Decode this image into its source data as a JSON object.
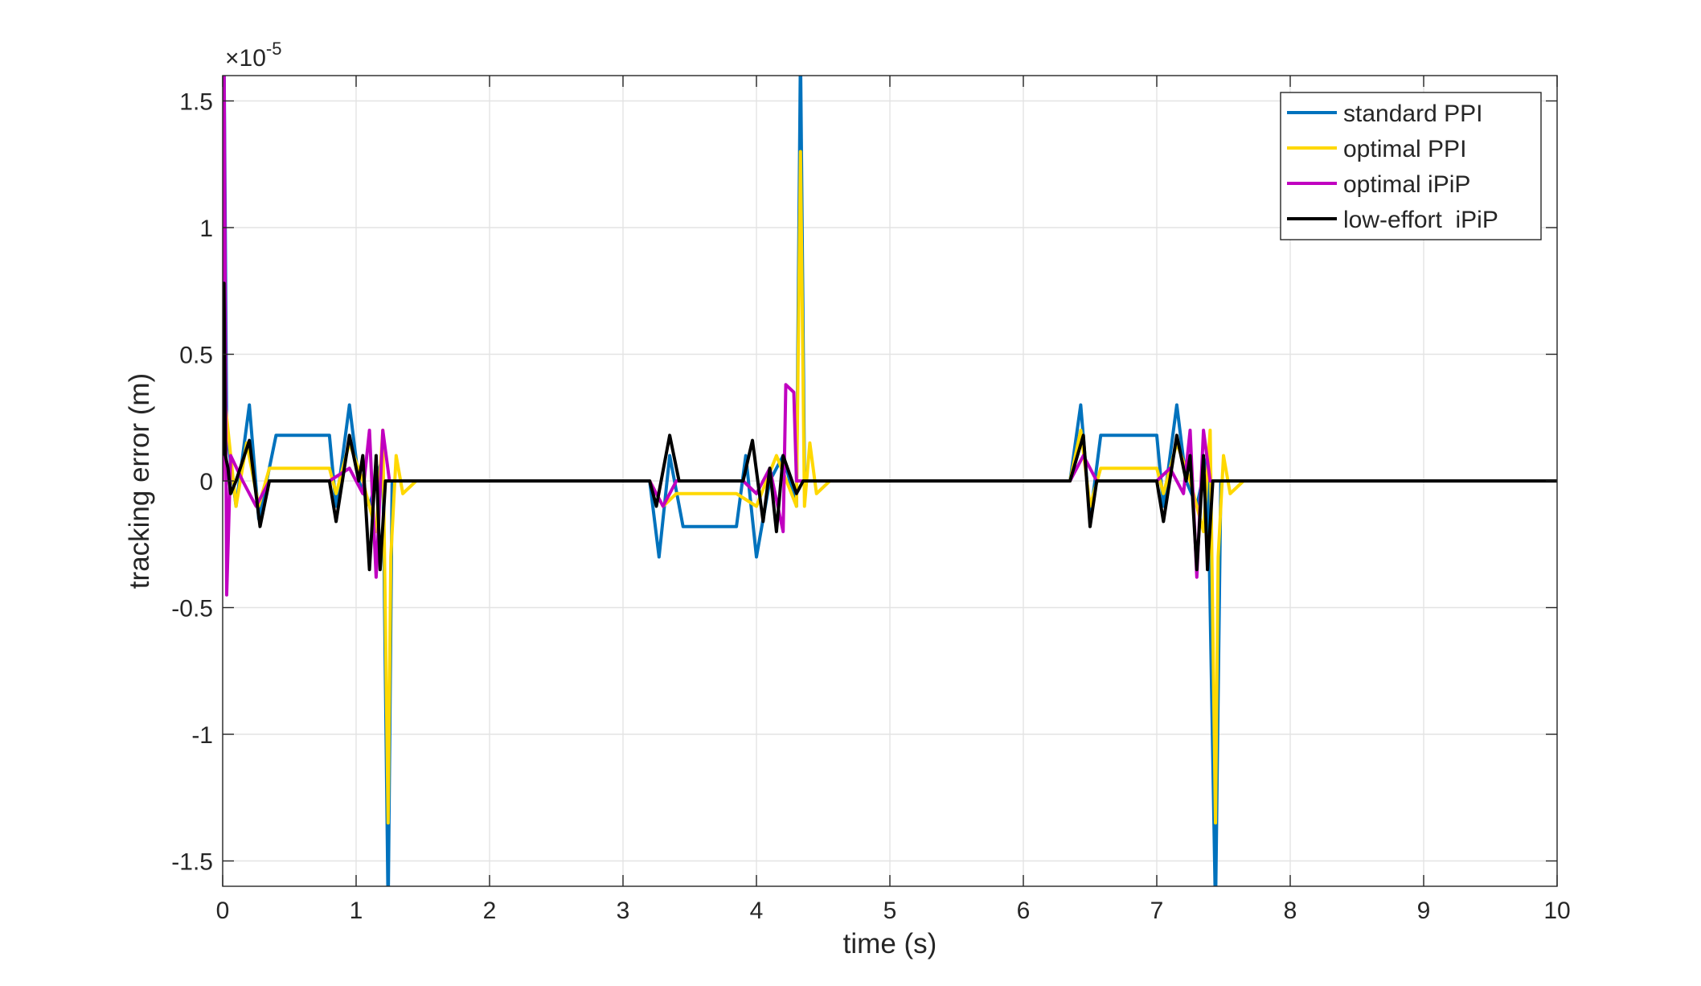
{
  "chart_data": {
    "type": "line",
    "xlabel": "time (s)",
    "ylabel": "tracking error (m)",
    "y_multiplier": "×10",
    "y_multiplier_exponent": "-5",
    "xlim": [
      0,
      10
    ],
    "xticks": [
      0,
      1,
      2,
      3,
      4,
      5,
      6,
      7,
      8,
      9,
      10
    ],
    "ylim": [
      -1.6,
      1.6
    ],
    "yticks": [
      -1.5,
      -1,
      -0.5,
      0,
      0.5,
      1,
      1.5
    ],
    "grid": true,
    "legend_location": "northeast",
    "series": [
      {
        "name": "standard PPI",
        "color": "#0072bd",
        "x": [
          0,
          0.01,
          0.03,
          0.1,
          0.2,
          0.27,
          0.33,
          0.4,
          0.8,
          0.85,
          0.95,
          1.02,
          1.1,
          1.2,
          1.24,
          1.27,
          1.4,
          3.2,
          3.27,
          3.35,
          3.45,
          3.85,
          3.92,
          4.0,
          4.1,
          4.2,
          4.3,
          4.33,
          4.36,
          4.5,
          6.35,
          6.43,
          6.5,
          6.58,
          7.0,
          7.05,
          7.15,
          7.22,
          7.3,
          7.38,
          7.44,
          7.48,
          7.6,
          10
        ],
        "values": [
          0,
          1.7,
          0.2,
          -0.1,
          0.3,
          -0.15,
          0,
          0.18,
          0.18,
          -0.1,
          0.3,
          0,
          -0.1,
          0.1,
          -1.7,
          0,
          0,
          0,
          -0.3,
          0.1,
          -0.18,
          -0.18,
          0.1,
          -0.3,
          0,
          0.1,
          -0.1,
          1.7,
          0,
          0,
          0,
          0.3,
          -0.15,
          0.18,
          0.18,
          -0.1,
          0.3,
          0,
          -0.1,
          0.1,
          -1.7,
          0,
          0,
          0
        ]
      },
      {
        "name": "optimal PPI",
        "color": "#ffd800",
        "x": [
          0,
          0.02,
          0.1,
          0.18,
          0.27,
          0.35,
          0.8,
          0.85,
          0.95,
          1.05,
          1.15,
          1.2,
          1.24,
          1.26,
          1.3,
          1.35,
          1.45,
          3.2,
          3.3,
          3.4,
          3.85,
          4.0,
          4.15,
          4.3,
          4.33,
          4.36,
          4.4,
          4.45,
          4.55,
          6.35,
          6.43,
          6.5,
          6.58,
          7.0,
          7.05,
          7.15,
          7.25,
          7.35,
          7.4,
          7.44,
          7.46,
          7.5,
          7.55,
          7.65,
          10
        ],
        "values": [
          0,
          0.3,
          -0.1,
          0.15,
          -0.1,
          0.05,
          0.05,
          -0.05,
          0.15,
          0,
          -0.2,
          0.2,
          -1.35,
          -0.3,
          0.1,
          -0.05,
          0,
          0,
          -0.1,
          -0.05,
          -0.05,
          -0.1,
          0.1,
          -0.1,
          1.3,
          -0.1,
          0.15,
          -0.05,
          0,
          0,
          0.2,
          -0.1,
          0.05,
          0.05,
          -0.05,
          0.15,
          0,
          -0.2,
          0.2,
          -1.35,
          -0.3,
          0.1,
          -0.05,
          0,
          0
        ]
      },
      {
        "name": "optimal iPiP",
        "color": "#c000c0",
        "x": [
          0,
          0.01,
          0.03,
          0.06,
          0.15,
          0.25,
          0.35,
          0.8,
          0.95,
          1.05,
          1.1,
          1.15,
          1.2,
          1.25,
          3.2,
          3.3,
          3.4,
          3.9,
          4.0,
          4.1,
          4.2,
          4.22,
          4.28,
          4.3,
          4.4,
          6.35,
          6.45,
          6.55,
          7.0,
          7.1,
          7.2,
          7.25,
          7.3,
          7.35,
          7.4,
          10
        ],
        "values": [
          0,
          1.7,
          -0.45,
          0.1,
          0,
          -0.1,
          0,
          0,
          0.05,
          -0.05,
          0.2,
          -0.38,
          0.2,
          0,
          0,
          -0.1,
          0,
          0,
          -0.05,
          0.05,
          -0.2,
          0.38,
          0.35,
          0,
          0,
          0,
          0.1,
          0,
          0,
          0.05,
          -0.05,
          0.2,
          -0.38,
          0.2,
          0,
          0
        ]
      },
      {
        "name": "low-effort  iPiP",
        "color": "#000000",
        "x": [
          0,
          0.01,
          0.02,
          0.04,
          0.06,
          0.1,
          0.2,
          0.28,
          0.35,
          0.8,
          0.85,
          0.95,
          1.02,
          1.05,
          1.1,
          1.15,
          1.18,
          1.22,
          3.2,
          3.25,
          3.35,
          3.42,
          3.9,
          3.97,
          4.05,
          4.1,
          4.15,
          4.2,
          4.3,
          4.35,
          6.35,
          6.45,
          6.5,
          6.55,
          7.0,
          7.05,
          7.15,
          7.22,
          7.25,
          7.3,
          7.35,
          7.38,
          7.42,
          10
        ],
        "values": [
          0.1,
          0.78,
          0.1,
          0.05,
          -0.05,
          0,
          0.16,
          -0.18,
          0,
          0,
          -0.16,
          0.18,
          0,
          0.1,
          -0.35,
          0.1,
          -0.35,
          0,
          0,
          -0.1,
          0.18,
          0,
          0,
          0.16,
          -0.16,
          0.05,
          -0.2,
          0.1,
          -0.05,
          0,
          0,
          0.18,
          -0.18,
          0,
          0,
          -0.16,
          0.18,
          0,
          0.1,
          -0.35,
          0.1,
          -0.35,
          0,
          0
        ]
      }
    ]
  }
}
